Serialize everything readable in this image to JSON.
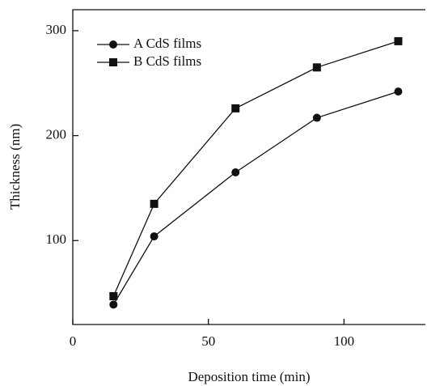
{
  "chart_data": {
    "type": "line",
    "x_label": "Deposition time (min)",
    "y_label": "Thickness (nm)",
    "xlim": [
      0,
      130
    ],
    "xticks": [
      0,
      50,
      100
    ],
    "ylim": [
      20,
      320
    ],
    "yticks": [
      100,
      200,
      300
    ],
    "legend": "upper left",
    "series": [
      {
        "name": "A CdS films",
        "color": "#111111",
        "marker": "circle",
        "x": [
          15,
          30,
          60,
          90,
          120
        ],
        "values": [
          39,
          104,
          165,
          217,
          242
        ]
      },
      {
        "name": "B CdS films",
        "color": "#111111",
        "marker": "square",
        "x": [
          15,
          30,
          60,
          90,
          120
        ],
        "values": [
          47,
          135,
          226,
          265,
          290
        ]
      }
    ]
  }
}
